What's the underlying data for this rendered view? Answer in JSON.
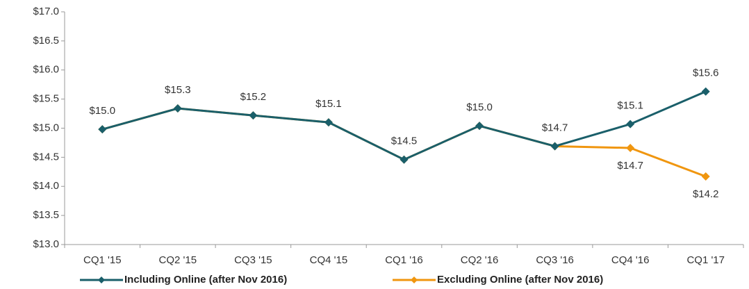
{
  "chart_data": {
    "type": "line",
    "categories": [
      "CQ1 '15",
      "CQ2 '15",
      "CQ3 '15",
      "CQ4 '15",
      "CQ1 '16",
      "CQ2 '16",
      "CQ3 '16",
      "CQ4 '16",
      "CQ1 '17"
    ],
    "series": [
      {
        "name": "Including Online (after Nov 2016)",
        "color": "#1a5f6a",
        "values": [
          14.98,
          15.34,
          15.22,
          15.1,
          14.46,
          15.04,
          14.69,
          15.07,
          15.63
        ],
        "value_labels": [
          "$15.0",
          "$15.3",
          "$15.2",
          "$15.1",
          "$14.5",
          "$15.0",
          "$14.7",
          "$15.1",
          "$15.6"
        ]
      },
      {
        "name": "Excluding Online (after Nov 2016)",
        "color": "#f0960f",
        "values": [
          14.98,
          15.34,
          15.22,
          15.1,
          14.46,
          15.04,
          14.69,
          14.66,
          14.17
        ],
        "value_labels": [
          null,
          null,
          null,
          null,
          null,
          null,
          null,
          "$14.7",
          "$14.2"
        ]
      }
    ],
    "ylim": [
      13,
      17
    ],
    "yticks": [
      {
        "value": 13,
        "label": "$13.0"
      },
      {
        "value": 13.5,
        "label": "$13.5"
      },
      {
        "value": 14,
        "label": "$14.0"
      },
      {
        "value": 14.5,
        "label": "$14.5"
      },
      {
        "value": 15,
        "label": "$15.0"
      },
      {
        "value": 15.5,
        "label": "$15.5"
      },
      {
        "value": 16,
        "label": "$16.0"
      },
      {
        "value": 16.5,
        "label": "$16.5"
      },
      {
        "value": 17,
        "label": "$17.0"
      }
    ],
    "grid": false,
    "legend": "bottom"
  }
}
